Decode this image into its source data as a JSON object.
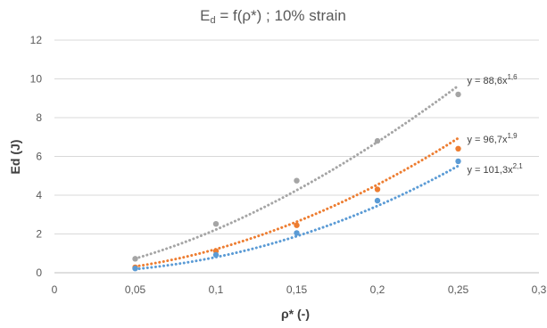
{
  "chart_data": {
    "type": "scatter",
    "title_main": "E",
    "title_sub": "d",
    "title_rest": " = f(ρ*) ; 10% strain",
    "xlabel": "ρ* (-)",
    "ylabel": "Ed (J)",
    "xlim": [
      0,
      0.3
    ],
    "ylim": [
      0,
      12
    ],
    "x_ticks": [
      0,
      0.05,
      0.1,
      0.15,
      0.2,
      0.25,
      0.3
    ],
    "x_tick_labels": [
      "0",
      "0,05",
      "0,1",
      "0,15",
      "0,2",
      "0,25",
      "0,3"
    ],
    "y_ticks": [
      0,
      2,
      4,
      6,
      8,
      10,
      12
    ],
    "y_tick_labels": [
      "0",
      "2",
      "4",
      "6",
      "8",
      "10",
      "12"
    ],
    "grid": true,
    "series": [
      {
        "color": "#A5A5A5",
        "x": [
          0.05,
          0.1,
          0.15,
          0.2,
          0.25
        ],
        "y": [
          0.72,
          2.52,
          4.75,
          6.8,
          9.2
        ],
        "trendline": {
          "type": "power",
          "a": 88.6,
          "b": 1.6
        },
        "equation_base": "y = 88,6x",
        "equation_exp": "1,6"
      },
      {
        "color": "#ED7D31",
        "x": [
          0.05,
          0.1,
          0.15,
          0.2,
          0.25
        ],
        "y": [
          0.28,
          1.12,
          2.45,
          4.3,
          6.4
        ],
        "trendline": {
          "type": "power",
          "a": 96.7,
          "b": 1.9
        },
        "equation_base": "y = 96,7x",
        "equation_exp": "1,9"
      },
      {
        "color": "#5B9BD5",
        "x": [
          0.05,
          0.1,
          0.15,
          0.2,
          0.25
        ],
        "y": [
          0.22,
          0.92,
          2.05,
          3.72,
          5.75
        ],
        "trendline": {
          "type": "power",
          "a": 101.3,
          "b": 2.1
        },
        "equation_base": "y = 101,3x",
        "equation_exp": "2,1"
      }
    ]
  }
}
